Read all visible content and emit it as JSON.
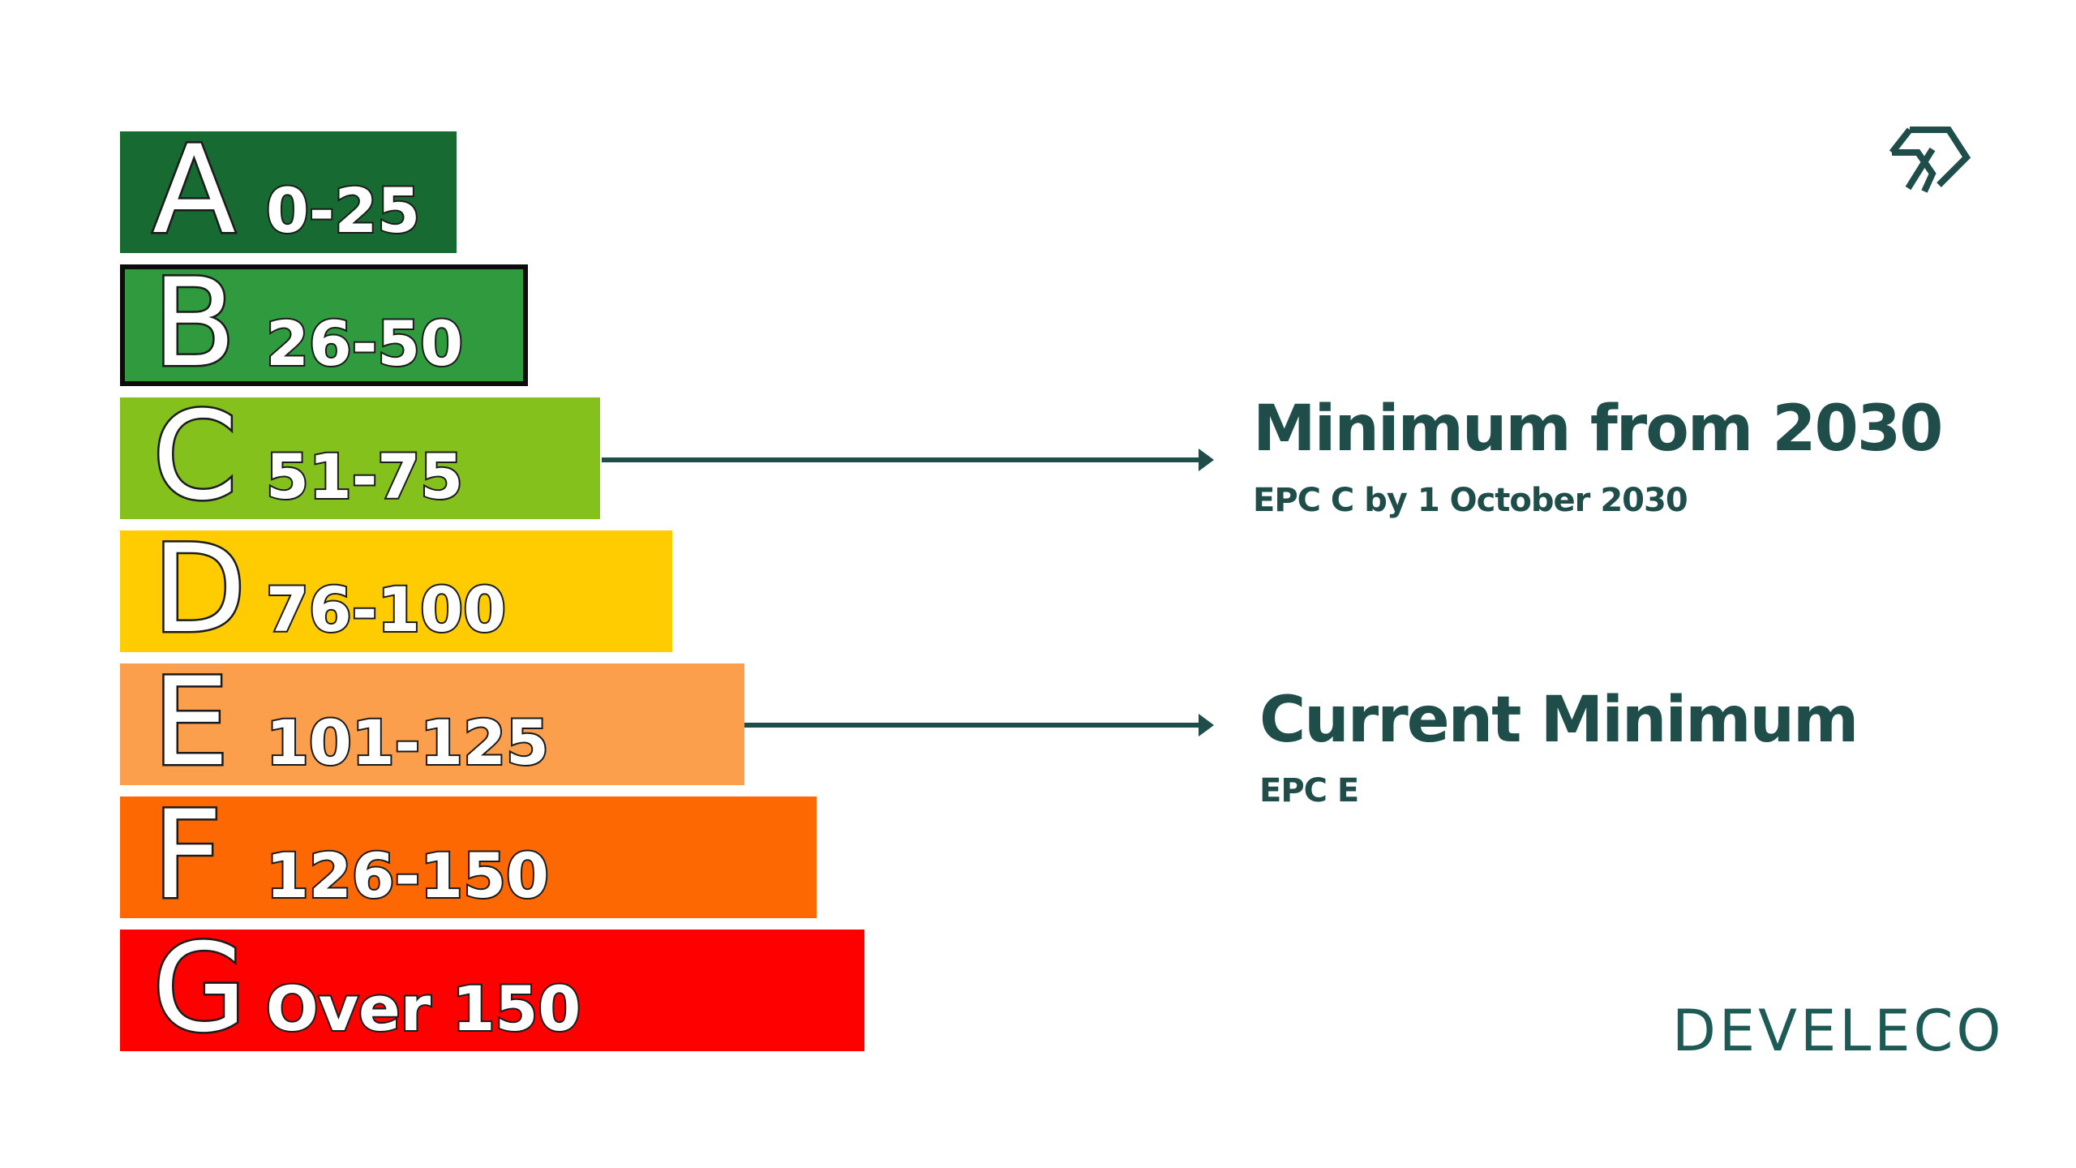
{
  "bands": [
    {
      "letter": "A",
      "range": "0-25",
      "color": "#176a32"
    },
    {
      "letter": "B",
      "range": "26-50",
      "color": "#2f9a3e"
    },
    {
      "letter": "C",
      "range": "51-75",
      "color": "#85c11d"
    },
    {
      "letter": "D",
      "range": "76-100",
      "color": "#fecc00"
    },
    {
      "letter": "E",
      "range": "101-125",
      "color": "#fc9f4c"
    },
    {
      "letter": "F",
      "range": "126-150",
      "color": "#fe6802"
    },
    {
      "letter": "G",
      "range": "Over 150",
      "color": "#fe0000"
    }
  ],
  "callouts": [
    {
      "title": "Minimum from 2030",
      "subtitle": "EPC C by 1 October 2030",
      "band": "C"
    },
    {
      "title": "Current Minimum",
      "subtitle": "EPC E",
      "band": "E"
    }
  ],
  "brand": {
    "name": "DEVELECO",
    "logo_icon": "develeco-mark-icon",
    "color": "#1e4d4a"
  }
}
